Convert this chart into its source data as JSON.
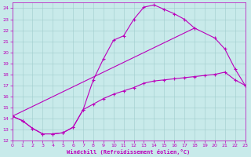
{
  "xlabel": "Windchill (Refroidissement éolien,°C)",
  "xlim": [
    0,
    23
  ],
  "ylim": [
    12,
    24.5
  ],
  "xticks": [
    0,
    1,
    2,
    3,
    4,
    5,
    6,
    7,
    8,
    9,
    10,
    11,
    12,
    13,
    14,
    15,
    16,
    17,
    18,
    19,
    20,
    21,
    22,
    23
  ],
  "yticks": [
    12,
    13,
    14,
    15,
    16,
    17,
    18,
    19,
    20,
    21,
    22,
    23,
    24
  ],
  "bg_color": "#c8eaea",
  "line_color": "#bb00bb",
  "grid_color": "#a0cccc",
  "curve1_x": [
    0,
    1,
    2,
    3,
    4,
    5,
    6,
    7,
    8,
    9,
    10,
    11,
    12,
    13,
    14,
    15,
    16,
    17,
    18
  ],
  "curve1_y": [
    14.2,
    13.8,
    13.1,
    12.6,
    12.6,
    12.7,
    13.2,
    14.8,
    17.5,
    19.4,
    21.1,
    21.5,
    23.0,
    24.1,
    24.3,
    23.9,
    23.5,
    23.0,
    22.2
  ],
  "curve2_x": [
    0,
    18,
    20,
    21,
    22,
    23
  ],
  "curve2_y": [
    14.2,
    22.2,
    21.3,
    20.3,
    18.5,
    17.0
  ],
  "curve3_x": [
    0,
    1,
    2,
    3,
    4,
    5,
    6,
    7,
    8,
    9,
    10,
    11,
    12,
    13,
    14,
    15,
    16,
    17,
    18,
    19,
    20,
    21,
    22,
    23
  ],
  "curve3_y": [
    14.2,
    13.8,
    13.1,
    12.6,
    12.6,
    12.7,
    13.2,
    14.8,
    15.3,
    15.8,
    16.2,
    16.5,
    16.8,
    17.2,
    17.4,
    17.5,
    17.6,
    17.7,
    17.8,
    17.9,
    18.0,
    18.2,
    17.5,
    17.0
  ]
}
